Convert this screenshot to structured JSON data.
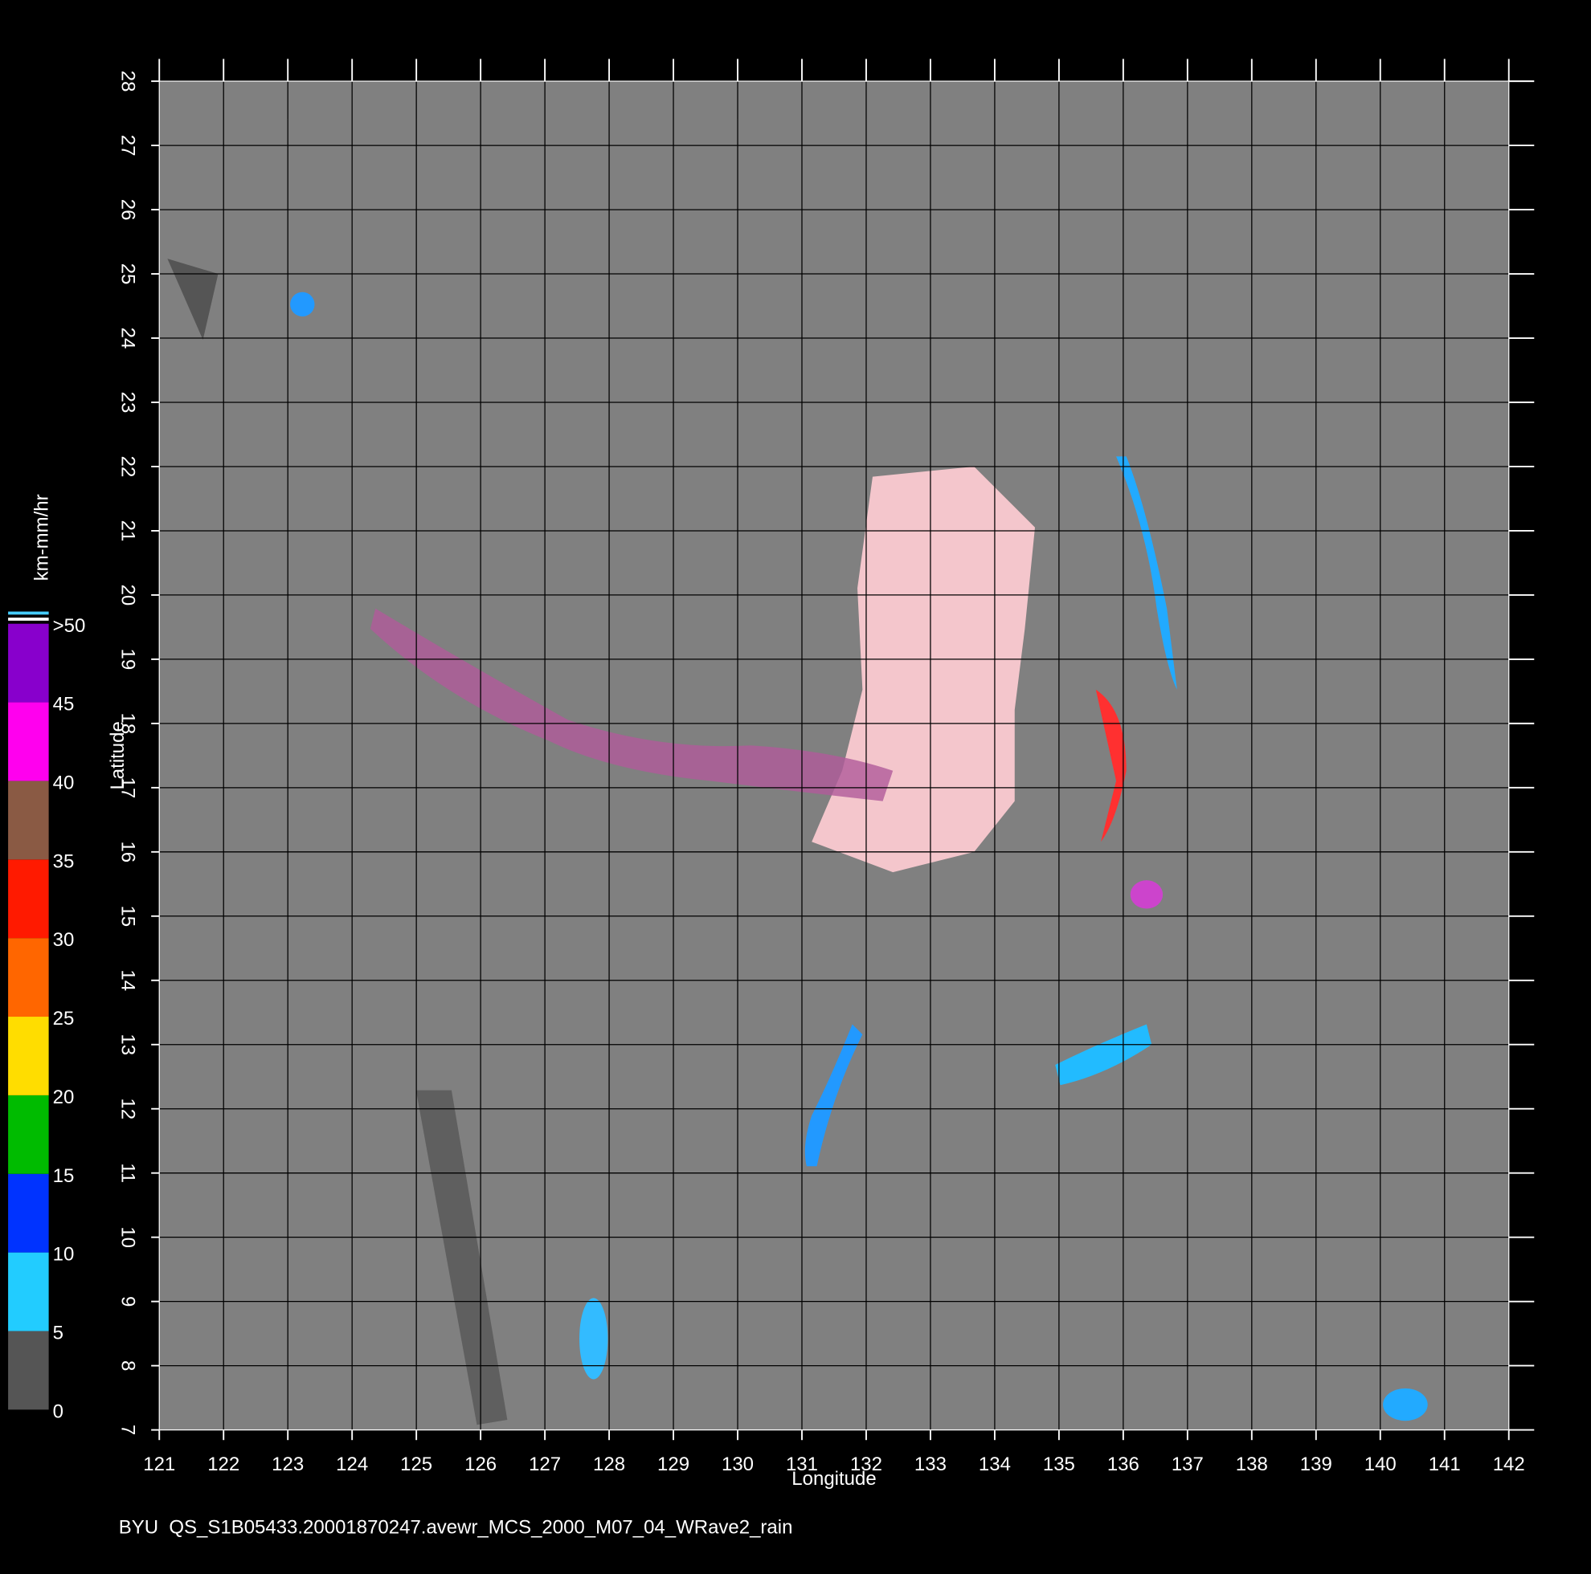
{
  "chart_data": {
    "type": "map",
    "caption": "BYU  QS_S1B05433.20001870247.avewr_MCS_2000_M07_04_WRave2_rain",
    "x_label": "Longitude",
    "y_label": "Latitude",
    "xlim": [
      121,
      142
    ],
    "ylim": [
      7,
      28
    ],
    "xticks": [
      121,
      122,
      123,
      124,
      125,
      126,
      127,
      128,
      129,
      130,
      131,
      132,
      133,
      134,
      135,
      136,
      137,
      138,
      139,
      140,
      141,
      142
    ],
    "yticks": [
      7,
      8,
      9,
      10,
      11,
      12,
      13,
      14,
      15,
      16,
      17,
      18,
      19,
      20,
      21,
      22,
      23,
      24,
      25,
      26,
      27,
      28
    ],
    "grid": true,
    "colorbar": {
      "label": "km-mm/hr",
      "lim": [
        0,
        50
      ],
      "ticks": [
        0,
        5,
        10,
        15,
        20,
        25,
        30,
        35,
        40,
        45,
        {
          "value": 50,
          "label": ">50"
        }
      ],
      "colors": [
        "#555555",
        "#22ccff",
        "#0033ff",
        "#00bb00",
        "#ffdd00",
        "#ff6600",
        "#ff1a00",
        "#8a5a44",
        "#ff00ee",
        "#8800cc"
      ]
    }
  }
}
